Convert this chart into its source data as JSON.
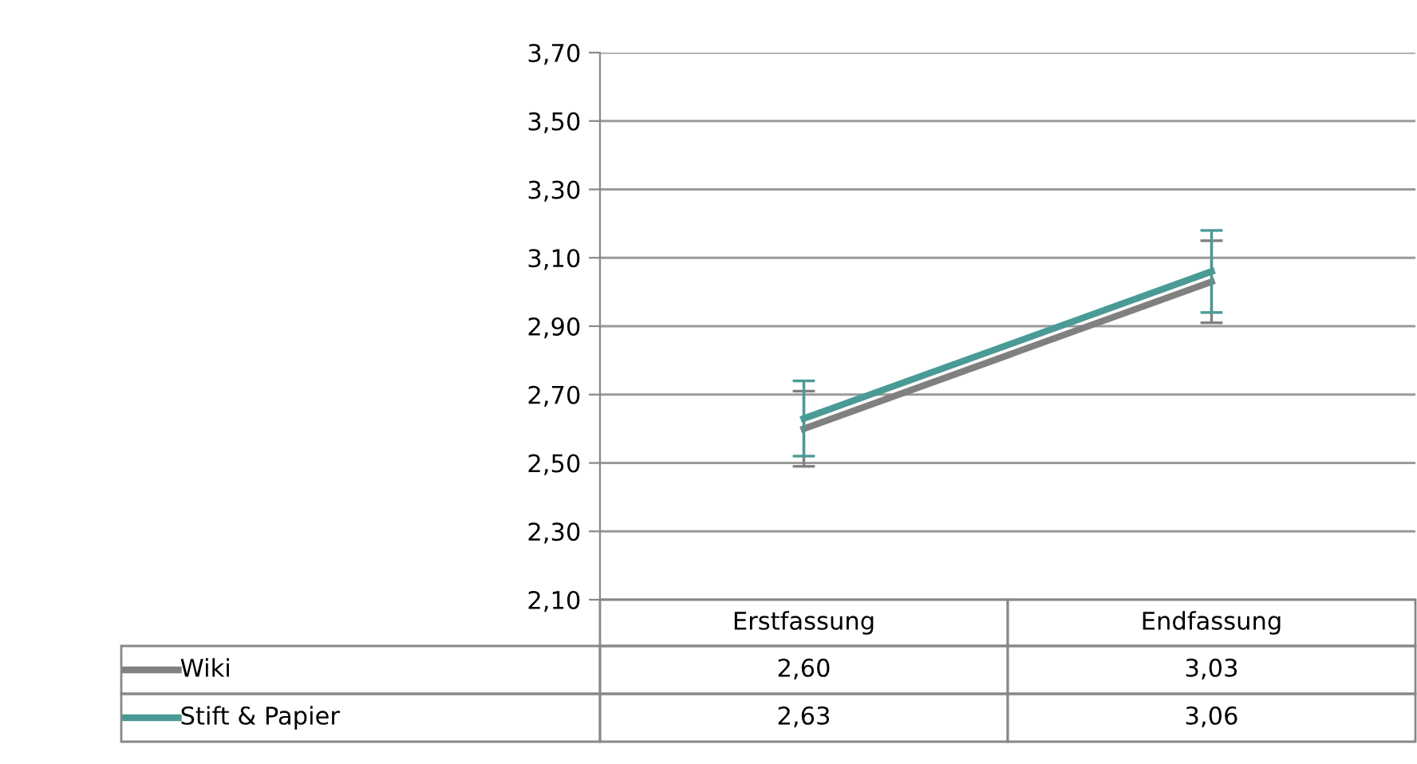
{
  "chart_data": {
    "type": "line",
    "categories": [
      "Erstfassung",
      "Endfassung"
    ],
    "series": [
      {
        "name": "Wiki",
        "color": "#808080",
        "values": [
          2.6,
          3.03
        ],
        "value_labels": [
          "2,60",
          "3,03"
        ],
        "errors": [
          0.11,
          0.12
        ]
      },
      {
        "name": "Stift & Papier",
        "color": "#4a9a96",
        "values": [
          2.63,
          3.06
        ],
        "value_labels": [
          "2,63",
          "3,06"
        ],
        "errors": [
          0.11,
          0.12
        ]
      }
    ],
    "ylim": [
      2.1,
      3.7
    ],
    "yticks": [
      {
        "value": 2.1,
        "label": "2,10"
      },
      {
        "value": 2.3,
        "label": "2,30"
      },
      {
        "value": 2.5,
        "label": "2,50"
      },
      {
        "value": 2.7,
        "label": "2,70"
      },
      {
        "value": 2.9,
        "label": "2,90"
      },
      {
        "value": 3.1,
        "label": "3,10"
      },
      {
        "value": 3.3,
        "label": "3,30"
      },
      {
        "value": 3.5,
        "label": "3,50"
      },
      {
        "value": 3.7,
        "label": "3,70"
      }
    ],
    "grid": "y",
    "legend": "bottom",
    "marker": "none",
    "line_style": "solid"
  }
}
